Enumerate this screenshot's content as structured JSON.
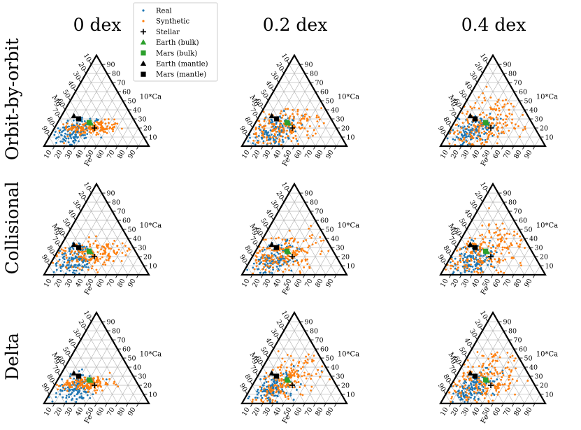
{
  "chart_data": {
    "type": "scatter",
    "subtype": "ternary",
    "columns": [
      "0 dex",
      "0.2 dex",
      "0.4 dex"
    ],
    "rows": [
      "Orbit-by-orbit",
      "Collisional",
      "Delta"
    ],
    "axes": {
      "left": "Mg",
      "right": "10*Ca",
      "bottom": "Fe",
      "ticks": [
        "10",
        "20",
        "30",
        "40",
        "50",
        "60",
        "70",
        "80",
        "90"
      ]
    },
    "legend": {
      "placement": "top-left",
      "entries": [
        {
          "label": "Real",
          "marker": "dot",
          "color": "#1f77b4"
        },
        {
          "label": "Synthetic",
          "marker": "dot",
          "color": "#ff7f0e"
        },
        {
          "label": "Stellar",
          "marker": "plus",
          "color": "#000000"
        },
        {
          "label": "Earth (bulk)",
          "marker": "triangle",
          "color": "#2ca02c"
        },
        {
          "label": "Mars (bulk)",
          "marker": "square",
          "color": "#2ca02c"
        },
        {
          "label": "Earth (mantle)",
          "marker": "triangle",
          "color": "#000000"
        },
        {
          "label": "Mars (mantle)",
          "marker": "square",
          "color": "#000000"
        }
      ]
    },
    "reference_points": [
      {
        "label": "Stellar",
        "Fe": 38,
        "Ca10": 20,
        "Mg": 42
      },
      {
        "label": "Earth (bulk)",
        "Fe": 32,
        "Ca10": 25,
        "Mg": 43
      },
      {
        "label": "Mars (bulk)",
        "Fe": 30,
        "Ca10": 26,
        "Mg": 44
      },
      {
        "label": "Earth (mantle)",
        "Fe": 12,
        "Ca10": 33,
        "Mg": 55
      },
      {
        "label": "Mars (mantle)",
        "Fe": 18,
        "Ca10": 30,
        "Mg": 52
      }
    ],
    "real_distribution": {
      "center_Fe": 22,
      "center_Ca10": 16,
      "spread_Fe": 10,
      "spread_Ca10": 9,
      "n": 130
    },
    "synthetic_distributions": [
      [
        {
          "center_Fe": 36,
          "center_Ca10": 20,
          "spread_Fe": 12,
          "spread_Ca10": 4,
          "n": 150
        },
        {
          "center_Fe": 30,
          "center_Ca10": 20,
          "spread_Fe": 17,
          "spread_Ca10": 10,
          "n": 170
        },
        {
          "center_Fe": 30,
          "center_Ca10": 22,
          "spread_Fe": 18,
          "spread_Ca10": 18,
          "n": 180
        }
      ],
      [
        {
          "center_Fe": 34,
          "center_Ca10": 24,
          "spread_Fe": 20,
          "spread_Ca10": 8,
          "n": 160
        },
        {
          "center_Fe": 28,
          "center_Ca10": 22,
          "spread_Fe": 18,
          "spread_Ca10": 12,
          "n": 180
        },
        {
          "center_Fe": 30,
          "center_Ca10": 24,
          "spread_Fe": 18,
          "spread_Ca10": 18,
          "n": 190
        }
      ],
      [
        {
          "center_Fe": 30,
          "center_Ca10": 22,
          "spread_Fe": 12,
          "spread_Ca10": 4,
          "n": 150
        },
        {
          "center_Fe": 28,
          "center_Ca10": 24,
          "spread_Fe": 14,
          "spread_Ca10": 14,
          "n": 180
        },
        {
          "center_Fe": 28,
          "center_Ca10": 22,
          "spread_Fe": 18,
          "spread_Ca10": 16,
          "n": 190
        }
      ]
    ],
    "colors": {
      "real": "#1f77b4",
      "synthetic": "#ff7f0e",
      "bulk": "#2ca02c",
      "black": "#000000",
      "grid": "#b0b0b0"
    }
  }
}
